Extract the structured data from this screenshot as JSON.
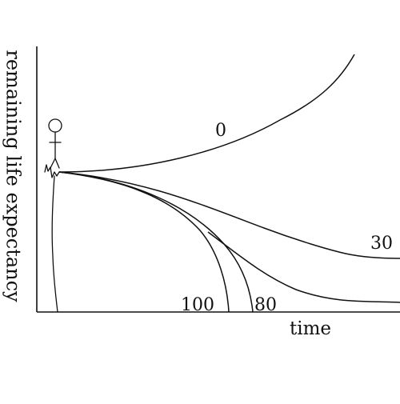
{
  "axes": {
    "y_title": "remaining life expectancy",
    "x_title": "time"
  },
  "curves": [
    {
      "label": "0"
    },
    {
      "label": "30"
    },
    {
      "label": "80"
    },
    {
      "label": "100"
    }
  ],
  "line_color": "#111111",
  "background": "#ffffff",
  "icon": "stick-figure-icon"
}
